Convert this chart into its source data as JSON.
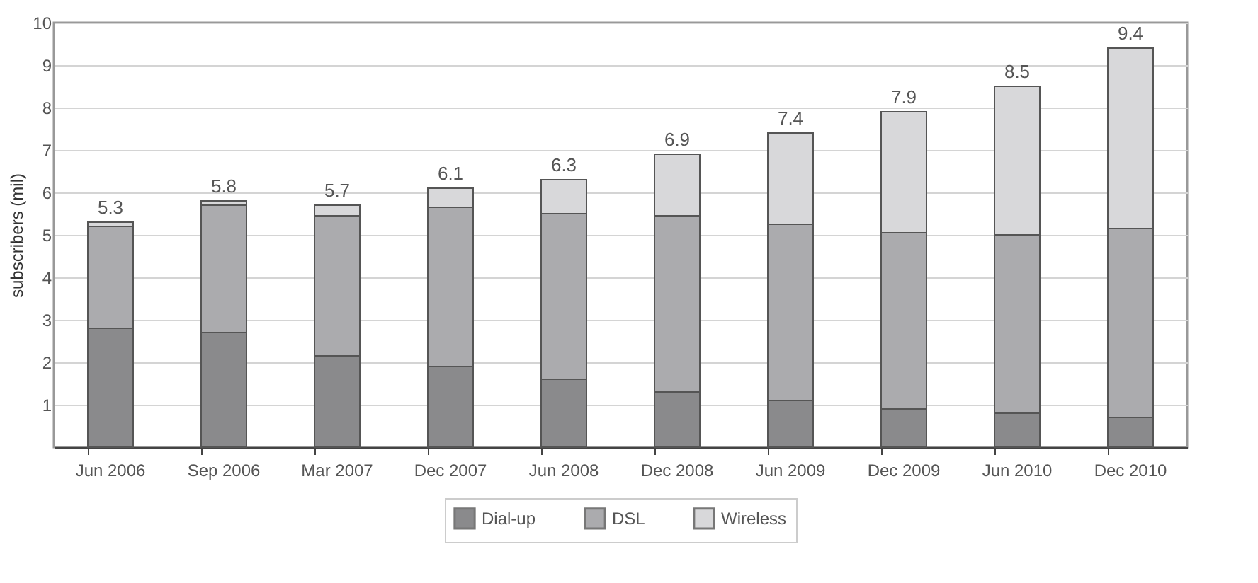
{
  "chart_data": {
    "type": "bar",
    "stacked": true,
    "ylabel": "subscribers (mil)",
    "categories": [
      "Jun 2006",
      "Sep 2006",
      "Mar 2007",
      "Dec 2007",
      "Jun 2008",
      "Dec 2008",
      "Jun 2009",
      "Dec 2009",
      "Jun 2010",
      "Dec 2010"
    ],
    "series": [
      {
        "name": "Dial-up",
        "color": "#8a8a8c",
        "values": [
          2.8,
          2.7,
          2.15,
          1.9,
          1.6,
          1.3,
          1.1,
          0.9,
          0.8,
          0.7
        ]
      },
      {
        "name": "DSL",
        "color": "#ababae",
        "values": [
          2.4,
          3.0,
          3.3,
          3.75,
          3.9,
          4.15,
          4.15,
          4.15,
          4.2,
          4.45
        ]
      },
      {
        "name": "Wireless",
        "color": "#d8d8da",
        "values": [
          0.1,
          0.1,
          0.25,
          0.45,
          0.8,
          1.45,
          2.15,
          2.85,
          3.5,
          4.25
        ]
      }
    ],
    "totals": [
      "5.3",
      "5.8",
      "5.7",
      "6.1",
      "6.3",
      "6.9",
      "7.4",
      "7.9",
      "8.5",
      "9.4"
    ],
    "ylim": [
      0,
      10
    ],
    "yticks": [
      1,
      2,
      3,
      4,
      5,
      6,
      7,
      8,
      9,
      10
    ],
    "grid": "y",
    "legend": "bottom"
  }
}
